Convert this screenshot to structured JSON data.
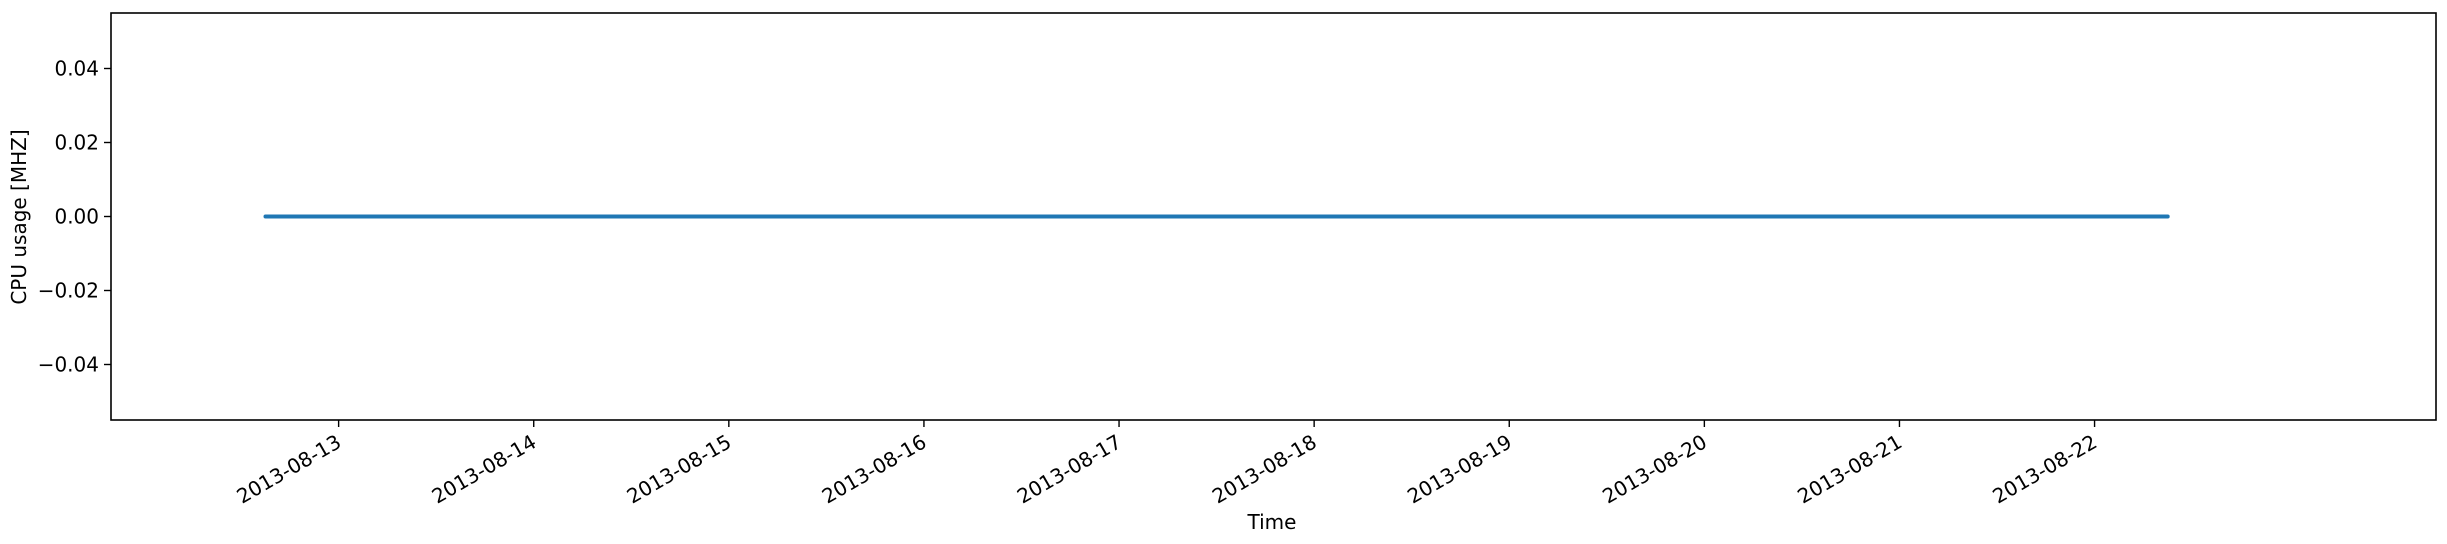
{
  "chart_data": {
    "type": "line",
    "title": "",
    "xlabel": "Time",
    "ylabel": "CPU usage [MHZ]",
    "x_start": "2013-08-12 15:00",
    "x_end": "2013-08-22 09:00",
    "xlim": [
      "2013-08-11 20:00",
      "2013-08-23 18:00"
    ],
    "ylim": [
      -0.055,
      0.055
    ],
    "y_ticks": [
      "0.04",
      "0.02",
      "0.00",
      "−0.02",
      "−0.04"
    ],
    "x_ticks": [
      "2013-08-13",
      "2013-08-14",
      "2013-08-15",
      "2013-08-16",
      "2013-08-17",
      "2013-08-18",
      "2013-08-19",
      "2013-08-20",
      "2013-08-21",
      "2013-08-22"
    ],
    "series": [
      {
        "values": [
          0,
          0
        ],
        "color": "#1f77b4"
      }
    ],
    "grid": false,
    "legend": "none"
  }
}
